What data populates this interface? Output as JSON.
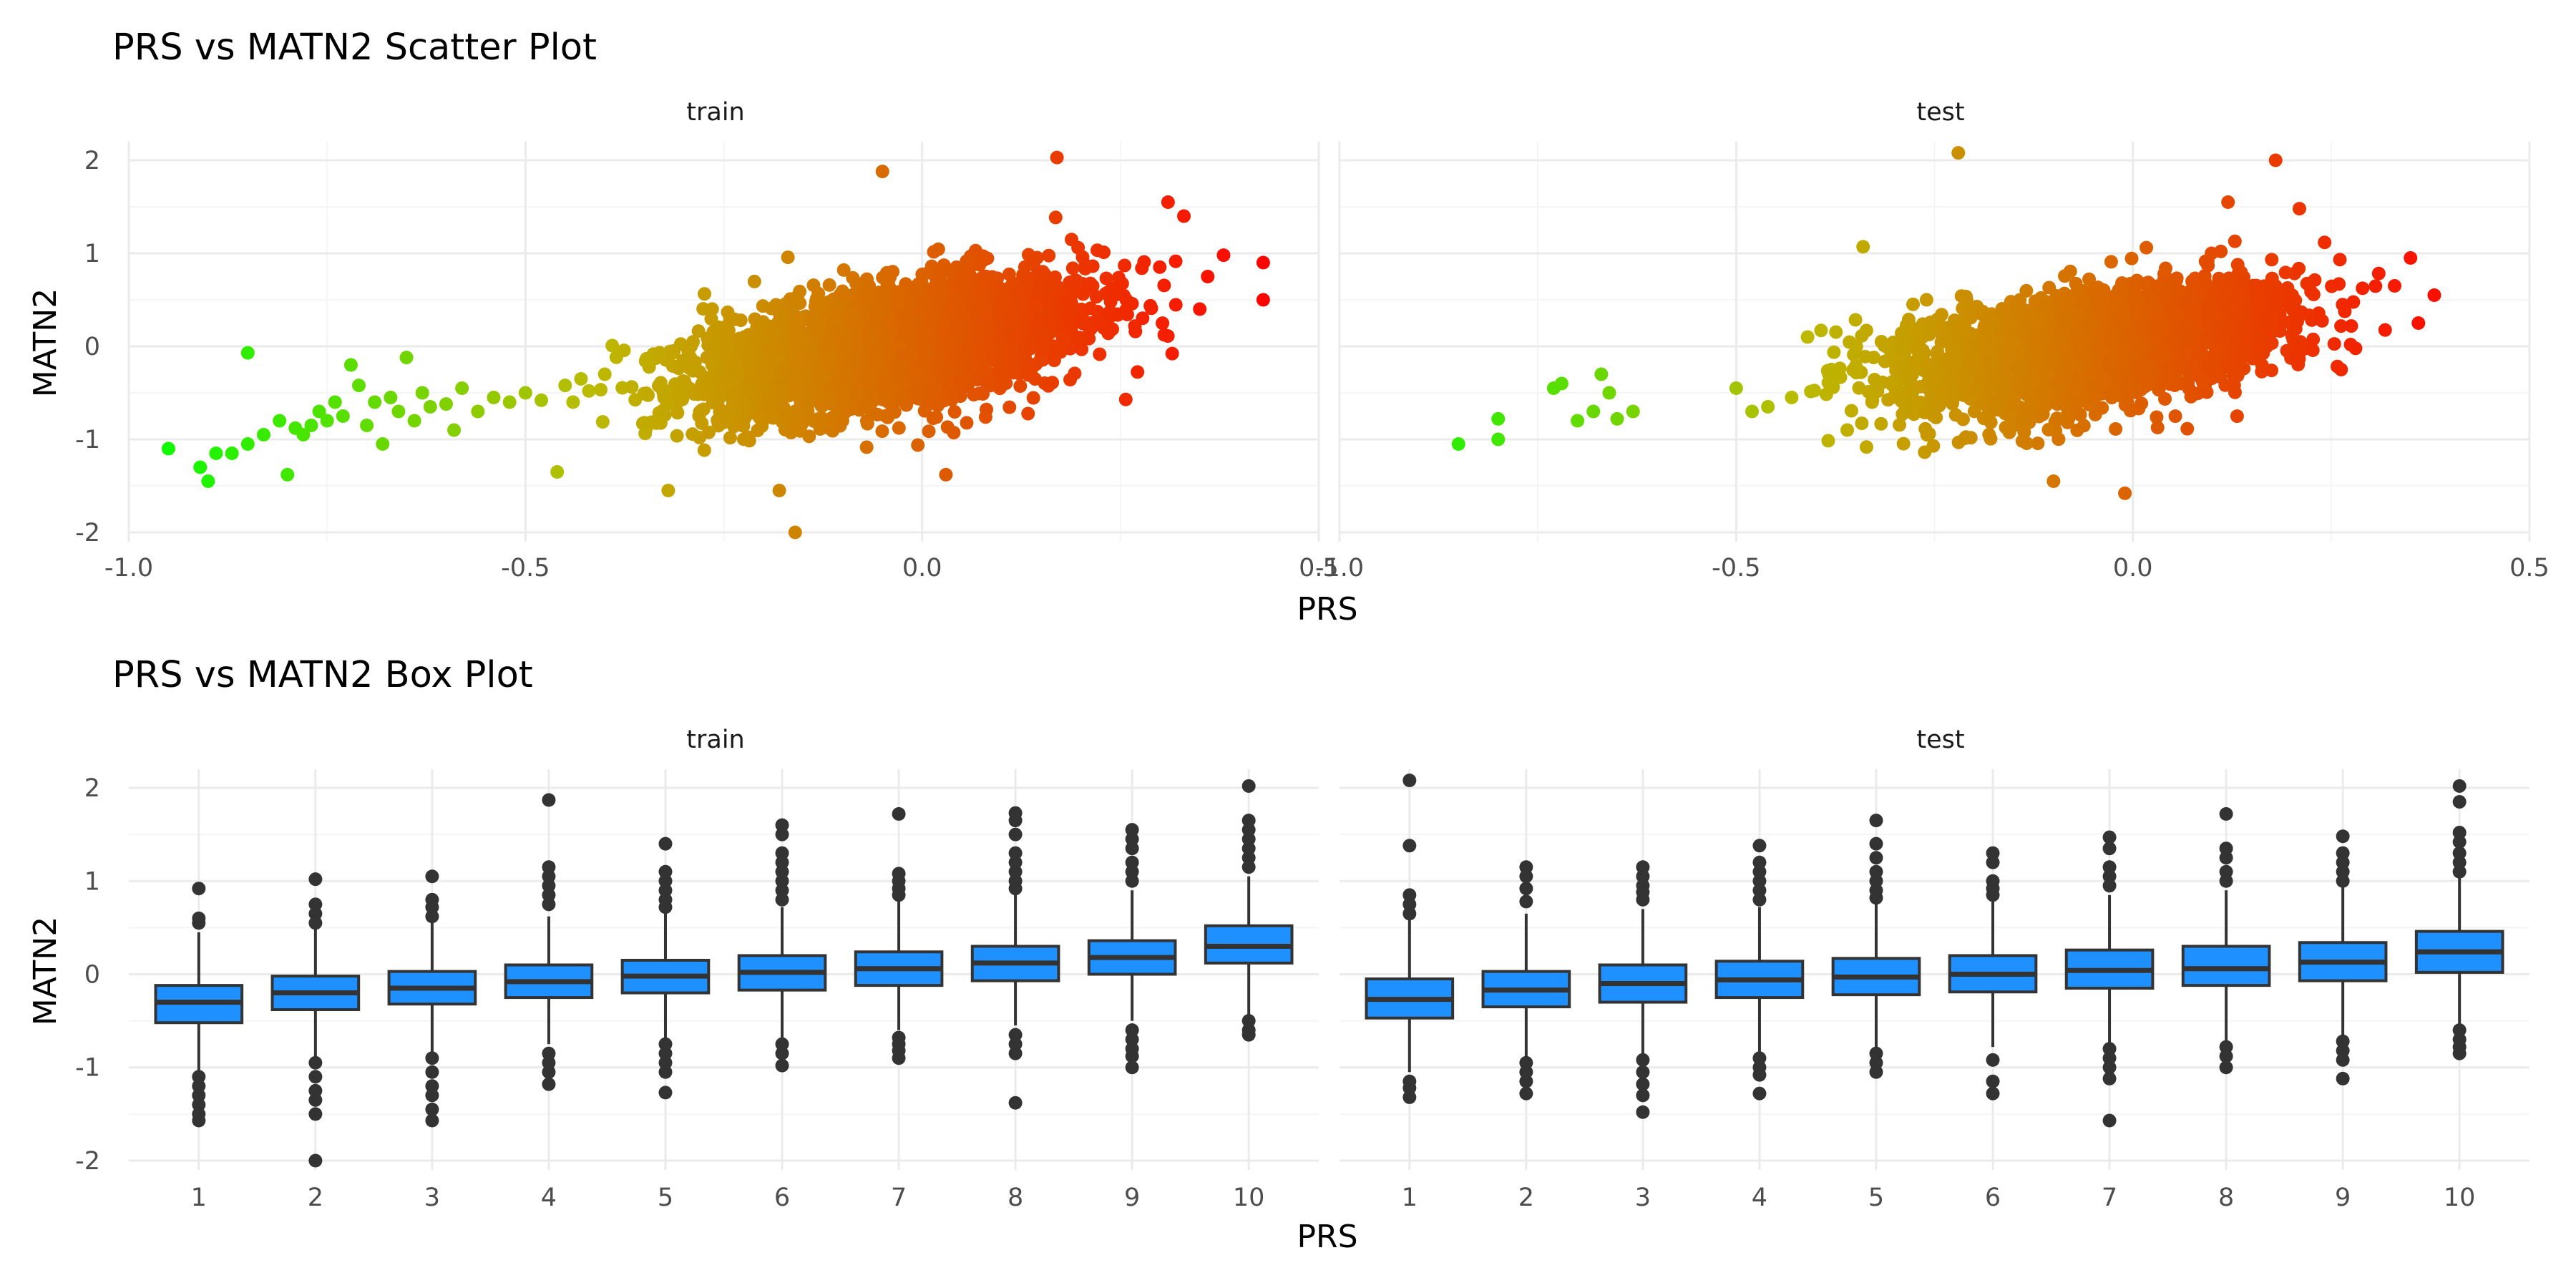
{
  "colors": {
    "point_low": "#00ff00",
    "point_mid": "#bbbb00",
    "point_high": "#ff0000",
    "box_fill": "#1e90ff",
    "box_line": "#333333",
    "outlier": "#333333",
    "grid_major": "#ebebeb",
    "grid_minor": "#f5f5f5"
  },
  "chart_data": [
    {
      "type": "scatter",
      "title": "PRS vs MATN2 Scatter Plot",
      "xlabel": "PRS",
      "ylabel": "MATN2",
      "facets": [
        "train",
        "test"
      ],
      "xlim": [
        -1.0,
        0.5
      ],
      "ylim": [
        -2.1,
        2.2
      ],
      "x_ticks": [
        -1.0,
        -0.5,
        0.0,
        0.5
      ],
      "x_tick_labels": [
        "-1.0",
        "-0.5",
        "0.0",
        "0.5"
      ],
      "y_ticks": [
        -2,
        -1,
        0,
        1,
        2
      ],
      "y_tick_labels": [
        "-2",
        "-1",
        "0",
        "1",
        "2"
      ],
      "color_mapping": "x (PRS), gradient green to red",
      "grid": true,
      "series": [
        {
          "facet": "train",
          "points": [
            [
              -0.95,
              -1.1
            ],
            [
              -0.91,
              -1.3
            ],
            [
              -0.9,
              -1.45
            ],
            [
              -0.89,
              -1.15
            ],
            [
              -0.87,
              -1.15
            ],
            [
              -0.85,
              -1.05
            ],
            [
              -0.85,
              -0.07
            ],
            [
              -0.83,
              -0.95
            ],
            [
              -0.81,
              -0.8
            ],
            [
              -0.8,
              -1.38
            ],
            [
              -0.79,
              -0.88
            ],
            [
              -0.78,
              -0.95
            ],
            [
              -0.77,
              -0.85
            ],
            [
              -0.76,
              -0.7
            ],
            [
              -0.75,
              -0.8
            ],
            [
              -0.74,
              -0.6
            ],
            [
              -0.73,
              -0.75
            ],
            [
              -0.72,
              -0.2
            ],
            [
              -0.71,
              -0.42
            ],
            [
              -0.7,
              -0.85
            ],
            [
              -0.69,
              -0.6
            ],
            [
              -0.68,
              -1.05
            ],
            [
              -0.67,
              -0.55
            ],
            [
              -0.66,
              -0.7
            ],
            [
              -0.65,
              -0.12
            ],
            [
              -0.64,
              -0.8
            ],
            [
              -0.63,
              -0.5
            ],
            [
              -0.62,
              -0.65
            ],
            [
              -0.6,
              -0.62
            ],
            [
              -0.59,
              -0.9
            ],
            [
              -0.58,
              -0.45
            ],
            [
              -0.56,
              -0.7
            ],
            [
              -0.54,
              -0.55
            ],
            [
              -0.52,
              -0.6
            ],
            [
              -0.5,
              -0.5
            ],
            [
              -0.48,
              -0.58
            ],
            [
              -0.46,
              -1.35
            ],
            [
              -0.45,
              -0.42
            ],
            [
              -0.44,
              -0.6
            ],
            [
              -0.43,
              -0.35
            ],
            [
              -0.42,
              -0.48
            ],
            [
              -0.4,
              -0.3
            ],
            [
              0.43,
              0.9
            ],
            [
              0.43,
              0.5
            ],
            [
              0.38,
              0.98
            ],
            [
              0.36,
              0.75
            ],
            [
              0.35,
              0.4
            ],
            [
              0.33,
              1.4
            ],
            [
              0.31,
              1.55
            ],
            [
              -0.16,
              -2.0
            ],
            [
              0.17,
              2.03
            ],
            [
              -0.05,
              1.88
            ],
            [
              0.03,
              -1.38
            ],
            [
              -0.32,
              -1.55
            ],
            [
              -0.18,
              -1.55
            ]
          ],
          "cloud": {
            "x_center": -0.03,
            "x_sd": 0.12,
            "slope": 1.45,
            "resid_sd": 0.32,
            "n": 3200
          }
        },
        {
          "facet": "test",
          "points": [
            [
              -0.85,
              -1.05
            ],
            [
              -0.8,
              -0.78
            ],
            [
              -0.8,
              -1.0
            ],
            [
              -0.73,
              -0.45
            ],
            [
              -0.72,
              -0.4
            ],
            [
              -0.7,
              -0.8
            ],
            [
              -0.68,
              -0.7
            ],
            [
              -0.67,
              -0.3
            ],
            [
              -0.66,
              -0.5
            ],
            [
              -0.65,
              -0.78
            ],
            [
              -0.63,
              -0.7
            ],
            [
              -0.5,
              -0.45
            ],
            [
              -0.48,
              -0.7
            ],
            [
              -0.46,
              -0.65
            ],
            [
              -0.43,
              -0.55
            ],
            [
              -0.41,
              0.1
            ],
            [
              -0.38,
              -0.25
            ],
            [
              -0.36,
              -0.9
            ],
            [
              -0.34,
              1.07
            ],
            [
              -0.22,
              2.08
            ],
            [
              0.35,
              0.95
            ],
            [
              0.38,
              0.55
            ],
            [
              0.36,
              0.25
            ],
            [
              0.33,
              0.65
            ],
            [
              -0.01,
              -1.58
            ],
            [
              -0.1,
              -1.45
            ],
            [
              0.21,
              1.48
            ],
            [
              0.18,
              2.0
            ],
            [
              -0.26,
              0.5
            ],
            [
              0.12,
              1.55
            ]
          ],
          "cloud": {
            "x_center": -0.05,
            "x_sd": 0.12,
            "slope": 1.2,
            "resid_sd": 0.3,
            "n": 2600
          }
        }
      ]
    },
    {
      "type": "box",
      "title": "PRS vs MATN2 Box Plot",
      "xlabel": "PRS",
      "ylabel": "MATN2",
      "facets": [
        "train",
        "test"
      ],
      "categories": [
        "1",
        "2",
        "3",
        "4",
        "5",
        "6",
        "7",
        "8",
        "9",
        "10"
      ],
      "ylim": [
        -2.1,
        2.2
      ],
      "y_ticks": [
        -2,
        -1,
        0,
        1,
        2
      ],
      "y_tick_labels": [
        "-2",
        "-1",
        "0",
        "1",
        "2"
      ],
      "grid": true,
      "series": [
        {
          "facet": "train",
          "boxes": [
            {
              "q1": -0.52,
              "median": -0.3,
              "q3": -0.12,
              "lo": -1.05,
              "hi": 0.45,
              "outliers": [
                0.92,
                0.6,
                0.55,
                -1.1,
                -1.2,
                -1.3,
                -1.4,
                -1.5,
                -1.57
              ]
            },
            {
              "q1": -0.38,
              "median": -0.2,
              "q3": -0.02,
              "lo": -0.9,
              "hi": 0.5,
              "outliers": [
                1.02,
                0.75,
                0.65,
                0.55,
                -0.95,
                -1.1,
                -1.25,
                -1.35,
                -1.5,
                -2.0
              ]
            },
            {
              "q1": -0.32,
              "median": -0.15,
              "q3": 0.03,
              "lo": -0.85,
              "hi": 0.55,
              "outliers": [
                1.05,
                0.8,
                0.72,
                0.62,
                -0.9,
                -1.05,
                -1.2,
                -1.3,
                -1.45,
                -1.57
              ]
            },
            {
              "q1": -0.25,
              "median": -0.08,
              "q3": 0.1,
              "lo": -0.75,
              "hi": 0.62,
              "outliers": [
                1.87,
                1.15,
                1.05,
                0.95,
                0.85,
                0.75,
                -0.85,
                -0.95,
                -1.05,
                -1.18
              ]
            },
            {
              "q1": -0.2,
              "median": -0.02,
              "q3": 0.15,
              "lo": -0.7,
              "hi": 0.68,
              "outliers": [
                1.4,
                1.1,
                1.0,
                0.9,
                0.8,
                0.72,
                -0.75,
                -0.85,
                -0.95,
                -1.05,
                -1.27
              ]
            },
            {
              "q1": -0.17,
              "median": 0.02,
              "q3": 0.2,
              "lo": -0.68,
              "hi": 0.72,
              "outliers": [
                1.6,
                1.5,
                1.3,
                1.2,
                1.1,
                1.0,
                0.9,
                0.8,
                -0.75,
                -0.85,
                -0.98
              ]
            },
            {
              "q1": -0.12,
              "median": 0.06,
              "q3": 0.24,
              "lo": -0.6,
              "hi": 0.78,
              "outliers": [
                1.72,
                1.08,
                1.0,
                0.92,
                0.85,
                -0.68,
                -0.75,
                -0.82,
                -0.9
              ]
            },
            {
              "q1": -0.07,
              "median": 0.12,
              "q3": 0.3,
              "lo": -0.55,
              "hi": 0.85,
              "outliers": [
                1.73,
                1.65,
                1.5,
                1.3,
                1.2,
                1.1,
                1.0,
                0.92,
                -0.65,
                -0.75,
                -0.85,
                -1.38
              ]
            },
            {
              "q1": 0.0,
              "median": 0.18,
              "q3": 0.36,
              "lo": -0.5,
              "hi": 0.9,
              "outliers": [
                1.55,
                1.45,
                1.35,
                1.2,
                1.1,
                1.0,
                -0.6,
                -0.7,
                -0.8,
                -0.88,
                -1.0
              ]
            },
            {
              "q1": 0.12,
              "median": 0.3,
              "q3": 0.52,
              "lo": -0.45,
              "hi": 1.05,
              "outliers": [
                2.02,
                1.65,
                1.55,
                1.45,
                1.35,
                1.25,
                1.15,
                -0.5,
                -0.6,
                -0.65
              ]
            }
          ]
        },
        {
          "facet": "test",
          "boxes": [
            {
              "q1": -0.47,
              "median": -0.27,
              "q3": -0.05,
              "lo": -1.05,
              "hi": 0.6,
              "outliers": [
                2.08,
                1.38,
                0.85,
                0.75,
                0.65,
                -1.15,
                -1.22,
                -1.32
              ]
            },
            {
              "q1": -0.35,
              "median": -0.17,
              "q3": 0.03,
              "lo": -0.9,
              "hi": 0.65,
              "outliers": [
                1.15,
                1.05,
                0.92,
                0.78,
                -0.95,
                -1.05,
                -1.15,
                -1.28
              ]
            },
            {
              "q1": -0.3,
              "median": -0.1,
              "q3": 0.1,
              "lo": -0.88,
              "hi": 0.7,
              "outliers": [
                1.15,
                1.05,
                0.95,
                0.88,
                0.8,
                -0.92,
                -1.05,
                -1.18,
                -1.3,
                -1.48
              ]
            },
            {
              "q1": -0.25,
              "median": -0.06,
              "q3": 0.14,
              "lo": -0.85,
              "hi": 0.72,
              "outliers": [
                1.38,
                1.2,
                1.1,
                1.0,
                0.9,
                0.8,
                -0.9,
                -1.0,
                -1.08,
                -1.28
              ]
            },
            {
              "q1": -0.22,
              "median": -0.03,
              "q3": 0.17,
              "lo": -0.82,
              "hi": 0.75,
              "outliers": [
                1.65,
                1.4,
                1.25,
                1.1,
                1.0,
                0.9,
                0.82,
                -0.85,
                -0.95,
                -1.05
              ]
            },
            {
              "q1": -0.19,
              "median": 0.0,
              "q3": 0.2,
              "lo": -0.78,
              "hi": 0.78,
              "outliers": [
                1.3,
                1.2,
                1.0,
                0.92,
                0.85,
                -0.92,
                -1.15,
                -1.28
              ]
            },
            {
              "q1": -0.15,
              "median": 0.04,
              "q3": 0.26,
              "lo": -0.75,
              "hi": 0.85,
              "outliers": [
                1.47,
                1.35,
                1.15,
                1.05,
                0.95,
                -0.8,
                -0.9,
                -1.0,
                -1.12,
                -1.57
              ]
            },
            {
              "q1": -0.12,
              "median": 0.06,
              "q3": 0.3,
              "lo": -0.72,
              "hi": 0.9,
              "outliers": [
                1.72,
                1.35,
                1.25,
                1.1,
                1.0,
                -0.78,
                -0.88,
                -1.0
              ]
            },
            {
              "q1": -0.07,
              "median": 0.13,
              "q3": 0.34,
              "lo": -0.65,
              "hi": 0.95,
              "outliers": [
                1.48,
                1.3,
                1.2,
                1.1,
                1.0,
                -0.72,
                -0.82,
                -0.92,
                -1.12
              ]
            },
            {
              "q1": 0.02,
              "median": 0.24,
              "q3": 0.46,
              "lo": -0.55,
              "hi": 1.05,
              "outliers": [
                2.02,
                1.85,
                1.52,
                1.42,
                1.3,
                1.2,
                1.1,
                -0.6,
                -0.7,
                -0.78,
                -0.85
              ]
            }
          ]
        }
      ]
    }
  ]
}
